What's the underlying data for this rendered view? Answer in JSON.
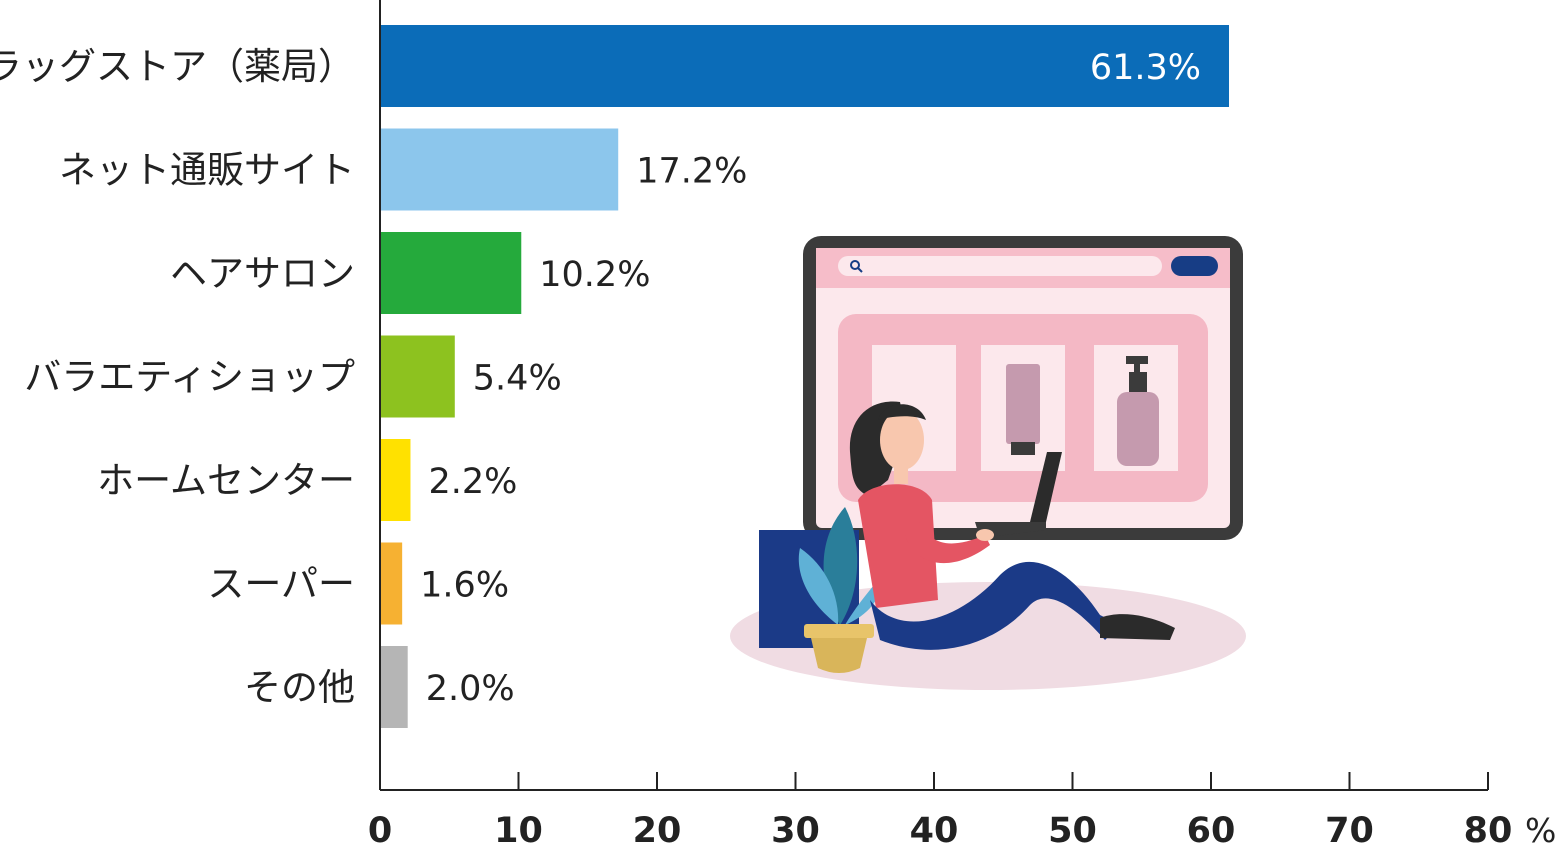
{
  "chart_data": {
    "type": "bar",
    "orientation": "horizontal",
    "categories": [
      "ドラッグストア（薬局）",
      "ネット通販サイト",
      "ヘアサロン",
      "バラエティショップ",
      "ホームセンター",
      "スーパー",
      "その他"
    ],
    "values": [
      61.3,
      17.2,
      10.2,
      5.4,
      2.2,
      1.6,
      2.0
    ],
    "value_labels": [
      "61.3%",
      "17.2%",
      "10.2%",
      "5.4%",
      "2.2%",
      "1.6%",
      "2.0%"
    ],
    "colors": [
      "#0B6CB8",
      "#8CC6EC",
      "#25AA3C",
      "#8DC21F",
      "#FFE100",
      "#F6B132",
      "#B5B5B5"
    ],
    "xlim": [
      0,
      80
    ],
    "xticks": [
      0,
      10,
      20,
      30,
      40,
      50,
      60,
      70,
      80
    ],
    "xticks_labels": [
      "0",
      "10",
      "20",
      "30",
      "40",
      "50",
      "60",
      "70",
      "80"
    ],
    "x_unit": "%",
    "grid": false,
    "title": "",
    "xlabel": "",
    "ylabel": ""
  },
  "illustration": {
    "subject": "woman-shopping-online-with-laptop",
    "colors": {
      "tablet_frame": "#3B3B3B",
      "screen_bg": "#FCE8EC",
      "product_panel": "#F4B8C5",
      "button": "#173D85",
      "shirt": "#E45563",
      "pants": "#1B3A87",
      "plant_leaf": "#2A7E9A",
      "pot": "#D9B55A",
      "shadow": "#F0DCE3"
    }
  }
}
